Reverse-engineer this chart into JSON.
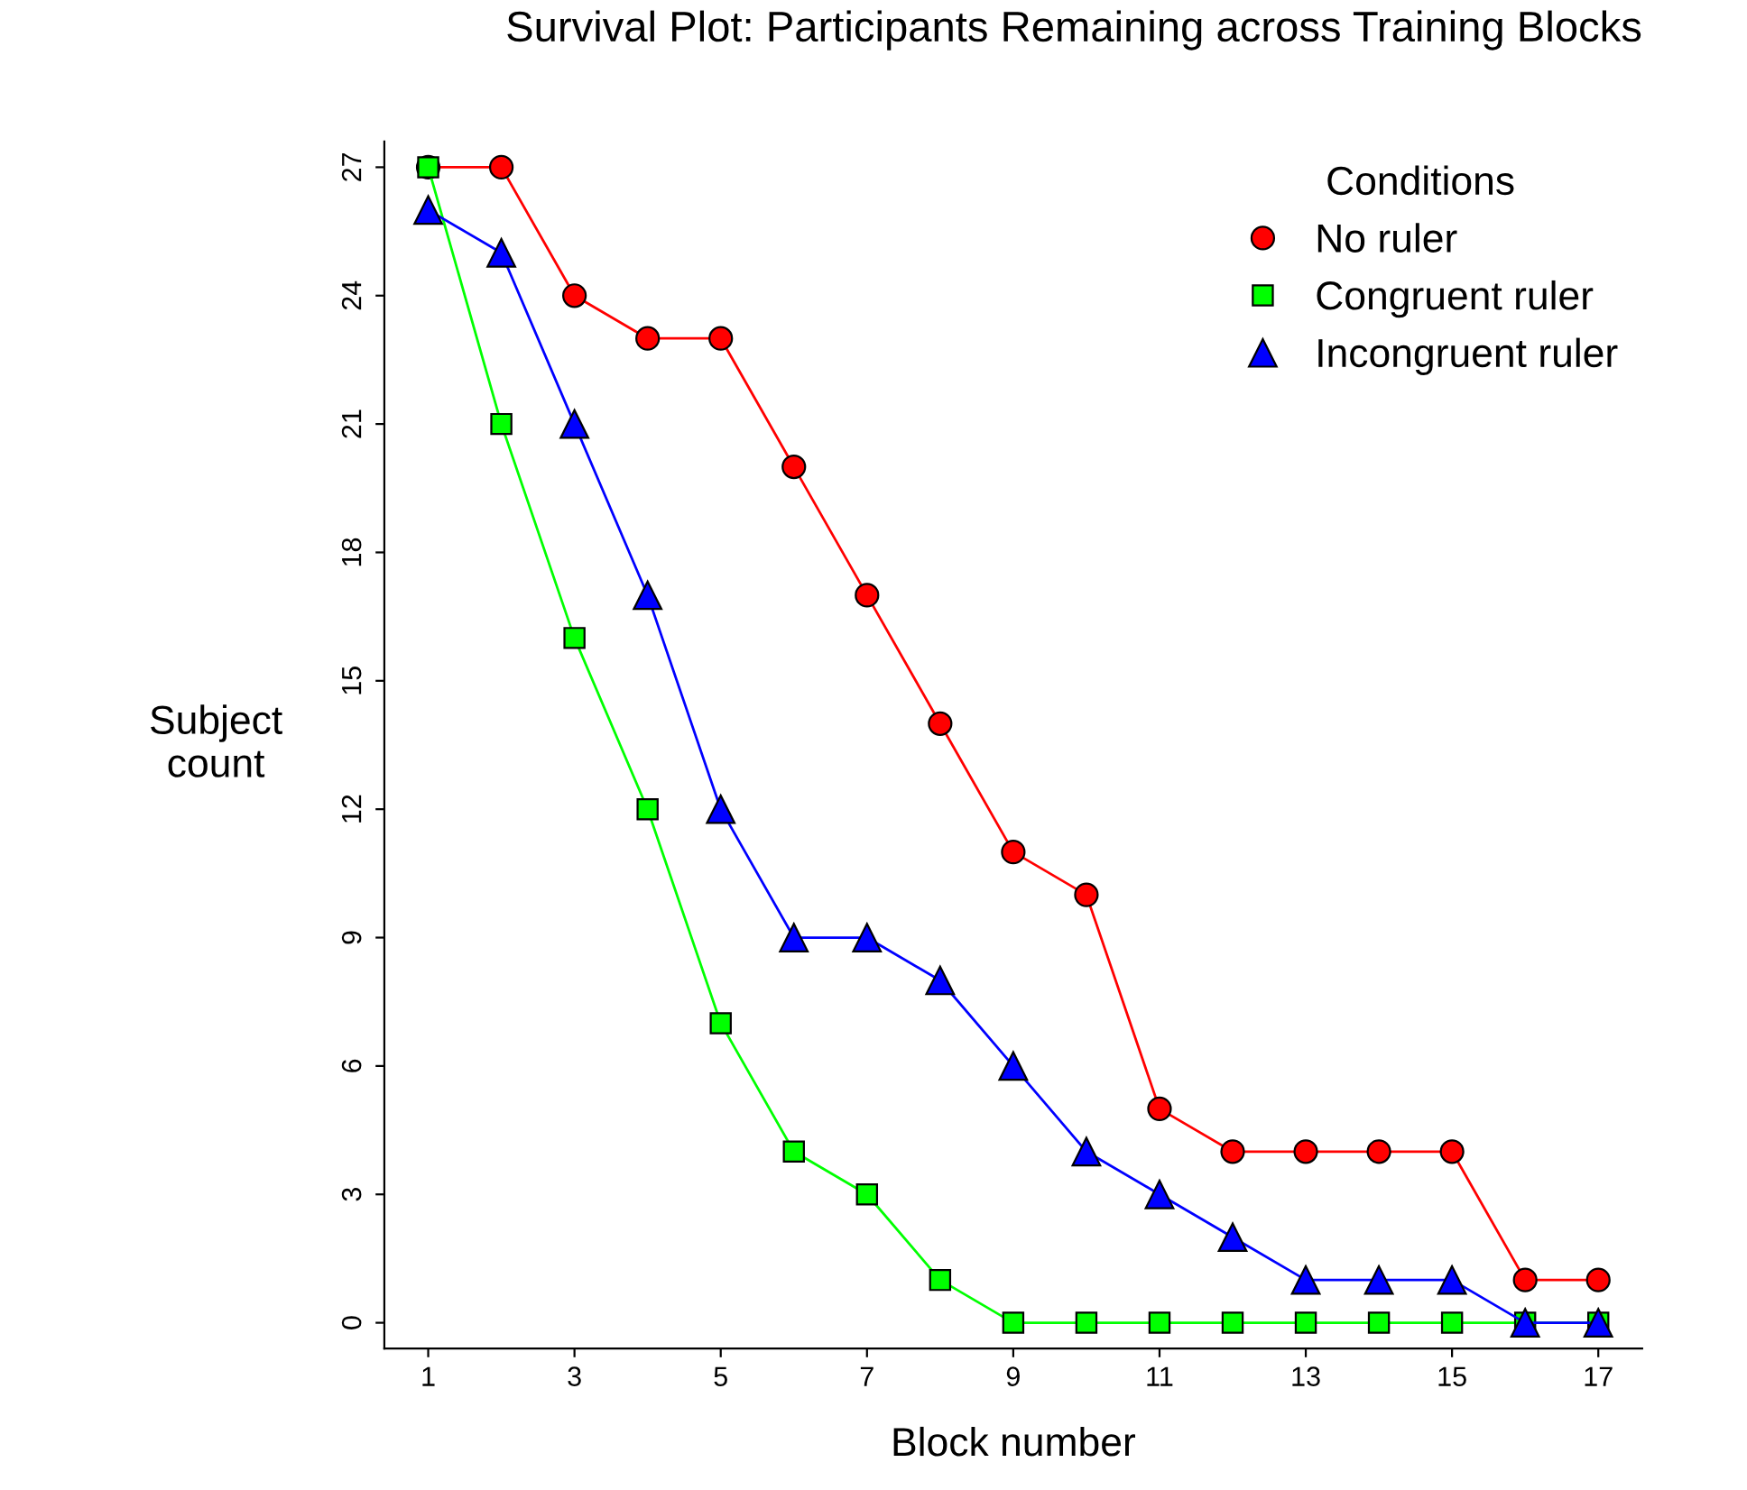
{
  "chart_data": {
    "type": "line",
    "title": "Survival Plot: Participants Remaining across Training Blocks",
    "xlabel": "Block number",
    "ylabel": "Subject\ncount",
    "legend_title": "Conditions",
    "x": [
      1,
      2,
      3,
      4,
      5,
      6,
      7,
      8,
      9,
      10,
      11,
      12,
      13,
      14,
      15,
      16,
      17
    ],
    "series": [
      {
        "name": "No ruler",
        "color": "#ff0000",
        "marker": "circle",
        "values": [
          27,
          27,
          24,
          23,
          23,
          20,
          17,
          14,
          11,
          10,
          5,
          4,
          4,
          4,
          4,
          1,
          1
        ]
      },
      {
        "name": "Congruent ruler",
        "color": "#00ff00",
        "marker": "square",
        "values": [
          27,
          21,
          16,
          12,
          7,
          4,
          3,
          1,
          0,
          0,
          0,
          0,
          0,
          0,
          0,
          0,
          0
        ]
      },
      {
        "name": "Incongruent ruler",
        "color": "#0000ff",
        "marker": "triangle",
        "values": [
          26,
          25,
          21,
          17,
          12,
          9,
          9,
          8,
          6,
          4,
          3,
          2,
          1,
          1,
          1,
          0,
          0
        ]
      }
    ],
    "xlim": [
      0.4,
      17.6
    ],
    "ylim": [
      -0.6,
      27.6
    ],
    "xticks": [
      1,
      3,
      5,
      7,
      9,
      11,
      13,
      15,
      17
    ],
    "yticks": [
      0,
      3,
      6,
      9,
      12,
      15,
      18,
      21,
      24,
      27
    ],
    "grid": false,
    "legend": "top right",
    "line_style": "solid"
  }
}
